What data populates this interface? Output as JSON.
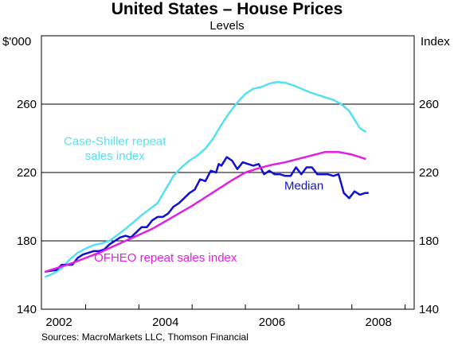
{
  "chart_data": {
    "type": "line",
    "title": "United States – House Prices",
    "subtitle": "Levels",
    "y_unit_left": "$'000",
    "y_unit_right": "Index",
    "ylim": [
      140,
      300
    ],
    "xlim": [
      2001.67,
      2008.67
    ],
    "y_ticks": [
      140,
      180,
      220,
      260
    ],
    "x_tick_labels": [
      "2002",
      "2004",
      "2006",
      "2008"
    ],
    "x_tick_label_positions": [
      2002,
      2004,
      2006,
      2008
    ],
    "x_minor_ticks": [
      2002.5,
      2003.5,
      2004.5,
      2005.5,
      2006.5,
      2007.5,
      2008.5
    ],
    "grid": "horizontal",
    "series": [
      {
        "name": "Case-Shiller repeat sales index",
        "color": "#55e0f2",
        "x": [
          2001.75,
          2001.9,
          2002.05,
          2002.2,
          2002.35,
          2002.5,
          2002.65,
          2002.8,
          2002.95,
          2003.1,
          2003.25,
          2003.4,
          2003.55,
          2003.7,
          2003.85,
          2004.0,
          2004.15,
          2004.3,
          2004.45,
          2004.6,
          2004.75,
          2004.9,
          2005.05,
          2005.2,
          2005.35,
          2005.5,
          2005.65,
          2005.8,
          2005.95,
          2006.1,
          2006.25,
          2006.4,
          2006.55,
          2006.7,
          2006.85,
          2007.0,
          2007.15,
          2007.3,
          2007.45,
          2007.55,
          2007.65,
          2007.75
        ],
        "values": [
          159,
          161,
          164,
          169,
          173,
          175.5,
          177.5,
          178.5,
          180,
          183.5,
          187,
          191,
          195,
          198.5,
          202,
          210,
          218,
          223,
          227,
          230,
          234,
          240,
          248,
          255,
          261,
          266,
          269,
          270,
          272,
          273,
          272.5,
          271,
          269,
          267,
          265.5,
          264,
          262.5,
          260,
          256,
          251,
          246,
          244
        ]
      },
      {
        "name": "Median",
        "color": "#1010d0",
        "x": [
          2001.75,
          2001.85,
          2001.95,
          2002.05,
          2002.15,
          2002.25,
          2002.35,
          2002.45,
          2002.55,
          2002.65,
          2002.75,
          2002.85,
          2002.95,
          2003.05,
          2003.15,
          2003.25,
          2003.35,
          2003.45,
          2003.55,
          2003.65,
          2003.75,
          2003.85,
          2003.95,
          2004.05,
          2004.15,
          2004.25,
          2004.35,
          2004.45,
          2004.55,
          2004.65,
          2004.75,
          2004.85,
          2004.95,
          2005.0,
          2005.05,
          2005.15,
          2005.25,
          2005.35,
          2005.45,
          2005.55,
          2005.65,
          2005.75,
          2005.85,
          2005.95,
          2006.05,
          2006.15,
          2006.25,
          2006.35,
          2006.45,
          2006.55,
          2006.65,
          2006.75,
          2006.85,
          2006.95,
          2007.05,
          2007.15,
          2007.25,
          2007.35,
          2007.45,
          2007.55,
          2007.65,
          2007.75,
          2007.8
        ],
        "values": [
          162,
          162.5,
          163,
          166,
          166,
          166,
          170,
          172,
          173,
          174,
          174,
          175,
          178,
          180,
          182,
          183,
          182,
          185,
          188,
          188,
          192,
          194,
          194,
          196,
          200,
          202,
          205,
          208,
          210,
          216,
          215,
          221,
          220,
          225,
          224,
          229,
          227,
          222,
          226,
          225,
          224,
          225,
          219,
          221,
          219,
          219,
          218,
          218,
          223,
          219,
          223,
          223,
          219,
          219,
          219,
          218,
          219,
          208,
          205,
          209,
          207,
          208,
          208
        ]
      },
      {
        "name": "OFHEO repeat sales index",
        "color": "#e020e0",
        "x": [
          2001.75,
          2002.0,
          2002.25,
          2002.5,
          2002.75,
          2003.0,
          2003.25,
          2003.5,
          2003.75,
          2004.0,
          2004.25,
          2004.5,
          2004.75,
          2005.0,
          2005.25,
          2005.5,
          2005.75,
          2006.0,
          2006.25,
          2006.5,
          2006.75,
          2007.0,
          2007.25,
          2007.5,
          2007.75
        ],
        "values": [
          162,
          164.5,
          167,
          170,
          173,
          176.5,
          180,
          183.5,
          187,
          191.5,
          196,
          200.5,
          205.5,
          210.5,
          215.5,
          220,
          222.5,
          224.5,
          226,
          228,
          230,
          232,
          232,
          230.5,
          228
        ]
      }
    ],
    "annotations": [
      {
        "text": "Case-Shiller repeat",
        "x": 2003.05,
        "y": 236,
        "color": "#55e0f2"
      },
      {
        "text": "sales index",
        "x": 2003.05,
        "y": 227.5,
        "color": "#55e0f2"
      },
      {
        "text": "Median",
        "x": 2006.6,
        "y": 210,
        "color": "#1010d0"
      },
      {
        "text": "OFHEO repeat sales index",
        "x": 2004.0,
        "y": 168,
        "color": "#e020e0"
      }
    ]
  },
  "source": "Sources: MacroMarkets LLC, Thomson Financial"
}
